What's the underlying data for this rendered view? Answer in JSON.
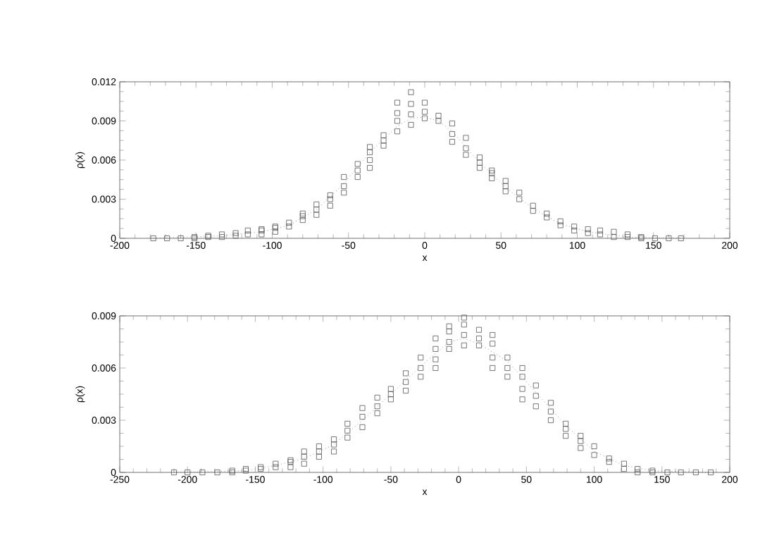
{
  "chart_data": [
    {
      "type": "scatter",
      "xlabel": "x",
      "ylabel": "ρ(x)",
      "xlim": [
        -200,
        200
      ],
      "ylim": [
        0,
        0.012
      ],
      "xticks": [
        -200,
        -150,
        -100,
        -50,
        0,
        50,
        100,
        150,
        200
      ],
      "yticks": [
        0,
        0.003,
        0.006,
        0.009,
        0.012
      ],
      "series": [
        {
          "marker": "square",
          "color": "#555555",
          "x": [
            -178,
            -169,
            -160,
            -151,
            -151,
            -142,
            -142,
            -133,
            -133,
            -124,
            -124,
            -116,
            -116,
            -107,
            -107,
            -107,
            -98,
            -98,
            -98,
            -89,
            -89,
            -80,
            -80,
            -80,
            -71,
            -71,
            -71,
            -62,
            -62,
            -62,
            -53,
            -53,
            -53,
            -44,
            -44,
            -44,
            -36,
            -36,
            -36,
            -36,
            -27,
            -27,
            -27,
            -18,
            -18,
            -18,
            -18,
            -9,
            -9,
            -9,
            -9,
            0,
            0,
            0,
            9,
            9,
            18,
            18,
            18,
            27,
            27,
            27,
            36,
            36,
            36,
            44,
            44,
            44,
            53,
            53,
            53,
            62,
            62,
            71,
            71,
            80,
            80,
            89,
            89,
            98,
            98,
            107,
            107,
            115,
            115,
            124,
            124,
            133,
            133,
            142,
            142,
            151,
            160,
            168
          ],
          "values": [
            0,
            0,
            0,
            0,
            0.0001,
            0.0001,
            0.0002,
            0.0001,
            0.0003,
            0.0002,
            0.0004,
            0.0003,
            0.0006,
            0.0003,
            0.0006,
            0.0007,
            0.0005,
            0.0008,
            0.0009,
            0.0009,
            0.0012,
            0.0014,
            0.0017,
            0.0019,
            0.0018,
            0.0022,
            0.0026,
            0.0025,
            0.003,
            0.0033,
            0.0035,
            0.004,
            0.0047,
            0.0047,
            0.0052,
            0.0057,
            0.0054,
            0.006,
            0.0066,
            0.007,
            0.0071,
            0.0075,
            0.0079,
            0.0082,
            0.009,
            0.0096,
            0.0104,
            0.0087,
            0.0095,
            0.0103,
            0.0112,
            0.0092,
            0.0097,
            0.0104,
            0.009,
            0.0094,
            0.0074,
            0.008,
            0.0088,
            0.0064,
            0.0069,
            0.0077,
            0.0054,
            0.0058,
            0.0062,
            0.0046,
            0.005,
            0.0052,
            0.0036,
            0.004,
            0.0044,
            0.003,
            0.0035,
            0.0021,
            0.0025,
            0.0016,
            0.0019,
            0.001,
            0.0013,
            0.0006,
            0.0009,
            0.0004,
            0.0007,
            0.0003,
            0.0006,
            0.0001,
            0.0005,
            0.0001,
            0.0003,
            0,
            0.0001,
            0,
            0,
            0
          ]
        },
        {
          "type": "line",
          "marker": "none",
          "line_style": "dotted",
          "color": "#555555",
          "x": [
            -178,
            -133,
            -107,
            -89,
            -71,
            -53,
            -36,
            -18,
            -9,
            0,
            9,
            18,
            36,
            53,
            71,
            89,
            107,
            133,
            168
          ],
          "values": [
            0,
            0.0002,
            0.0005,
            0.001,
            0.0022,
            0.0042,
            0.0066,
            0.0086,
            0.0092,
            0.0093,
            0.009,
            0.0082,
            0.0058,
            0.0039,
            0.0023,
            0.0011,
            0.0005,
            0.0001,
            0
          ]
        }
      ]
    },
    {
      "type": "scatter",
      "xlabel": "x",
      "ylabel": "ρ(x)",
      "xlim": [
        -250,
        200
      ],
      "ylim": [
        0,
        0.009
      ],
      "xticks": [
        -250,
        -200,
        -150,
        -100,
        -50,
        0,
        50,
        100,
        150,
        200
      ],
      "yticks": [
        0,
        0.003,
        0.006,
        0.009
      ],
      "series": [
        {
          "marker": "square",
          "color": "#555555",
          "x": [
            -210,
            -200,
            -189,
            -178,
            -167,
            -167,
            -157,
            -157,
            -146,
            -146,
            -135,
            -135,
            -124,
            -124,
            -124,
            -114,
            -114,
            -114,
            -103,
            -103,
            -103,
            -92,
            -92,
            -92,
            -82,
            -82,
            -82,
            -71,
            -71,
            -71,
            -60,
            -60,
            -60,
            -50,
            -50,
            -50,
            -39,
            -39,
            -39,
            -28,
            -28,
            -28,
            -17,
            -17,
            -17,
            -17,
            -7,
            -7,
            -7,
            -7,
            4,
            4,
            4,
            4,
            15,
            15,
            15,
            25,
            25,
            25,
            25,
            36,
            36,
            36,
            47,
            47,
            47,
            47,
            57,
            57,
            57,
            68,
            68,
            68,
            79,
            79,
            79,
            90,
            90,
            90,
            100,
            100,
            111,
            111,
            122,
            122,
            132,
            132,
            143,
            143,
            154,
            164,
            175,
            186
          ],
          "values": [
            0,
            0,
            0,
            0,
            0,
            0.0001,
            0.0001,
            0.0002,
            0.0002,
            0.0003,
            0.0003,
            0.0005,
            0.0003,
            0.0006,
            0.0007,
            0.0005,
            0.0009,
            0.0012,
            0.0009,
            0.0012,
            0.0015,
            0.0012,
            0.0016,
            0.0019,
            0.002,
            0.0024,
            0.0028,
            0.0026,
            0.0032,
            0.0037,
            0.0034,
            0.0038,
            0.0043,
            0.0042,
            0.0045,
            0.0048,
            0.0047,
            0.0052,
            0.0057,
            0.0055,
            0.006,
            0.0066,
            0.006,
            0.0065,
            0.0071,
            0.0077,
            0.0071,
            0.0075,
            0.0081,
            0.0084,
            0.0073,
            0.0079,
            0.0085,
            0.0089,
            0.0073,
            0.0077,
            0.0082,
            0.006,
            0.0066,
            0.0074,
            0.0079,
            0.0055,
            0.006,
            0.0066,
            0.0042,
            0.0048,
            0.0055,
            0.006,
            0.0038,
            0.0044,
            0.005,
            0.003,
            0.0035,
            0.004,
            0.0021,
            0.0025,
            0.0028,
            0.0014,
            0.0018,
            0.0021,
            0.001,
            0.0015,
            0.0006,
            0.0008,
            0.0002,
            0.0005,
            0,
            0.0002,
            0,
            0.0001,
            0,
            0,
            0,
            0
          ]
        },
        {
          "type": "line",
          "marker": "none",
          "line_style": "dotted",
          "color": "#555555",
          "x": [
            -210,
            -157,
            -135,
            -114,
            -92,
            -71,
            -50,
            -28,
            -7,
            4,
            15,
            36,
            57,
            79,
            100,
            122,
            143,
            186
          ],
          "values": [
            0,
            0.0001,
            0.0004,
            0.0008,
            0.0016,
            0.003,
            0.0045,
            0.0061,
            0.0075,
            0.0077,
            0.0074,
            0.0064,
            0.0046,
            0.0027,
            0.0012,
            0.0004,
            0.0001,
            0
          ]
        }
      ]
    }
  ]
}
